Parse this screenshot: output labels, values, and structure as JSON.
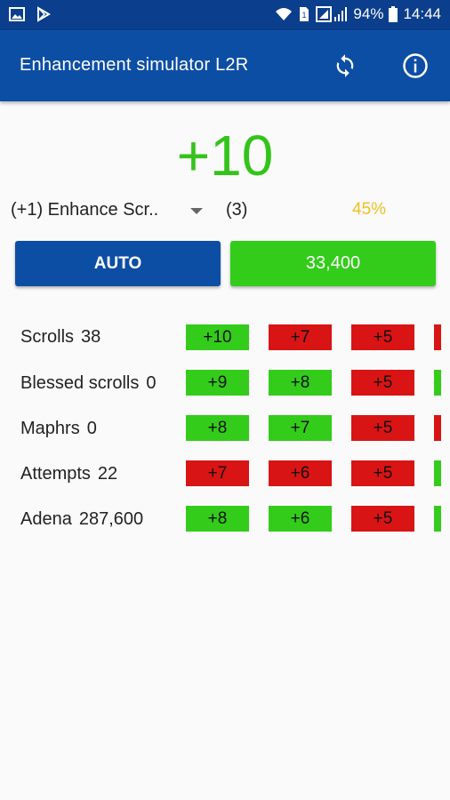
{
  "status": {
    "battery": "94%",
    "time": "14:44"
  },
  "app": {
    "title": "Enhancement simulator L2R"
  },
  "enchant_level": "+10",
  "scroll_select": {
    "value": "(+1) Enhance Scr.."
  },
  "scroll_count": "(3)",
  "success_chance": "45%",
  "buttons": {
    "auto": "AUTO",
    "enhance_cost": "33,400"
  },
  "stats": [
    {
      "label": "Scrolls",
      "value": "38"
    },
    {
      "label": "Blessed scrolls",
      "value": "0"
    },
    {
      "label": "Maphrs",
      "value": "0"
    },
    {
      "label": "Attempts",
      "value": "22"
    },
    {
      "label": "Adena",
      "value": "287,600"
    }
  ],
  "history": [
    [
      {
        "text": "+10",
        "color": "#33cc1a"
      },
      {
        "text": "+7",
        "color": "#d91414"
      },
      {
        "text": "+5",
        "color": "#d91414"
      },
      {
        "text": "",
        "color": "#d91414"
      }
    ],
    [
      {
        "text": "+9",
        "color": "#33cc1a"
      },
      {
        "text": "+8",
        "color": "#33cc1a"
      },
      {
        "text": "+5",
        "color": "#d91414"
      },
      {
        "text": "",
        "color": "#33cc1a"
      }
    ],
    [
      {
        "text": "+8",
        "color": "#33cc1a"
      },
      {
        "text": "+7",
        "color": "#33cc1a"
      },
      {
        "text": "+5",
        "color": "#d91414"
      },
      {
        "text": "",
        "color": "#d91414"
      }
    ],
    [
      {
        "text": "+7",
        "color": "#d91414"
      },
      {
        "text": "+6",
        "color": "#d91414"
      },
      {
        "text": "+5",
        "color": "#d91414"
      },
      {
        "text": "",
        "color": "#33cc1a"
      }
    ],
    [
      {
        "text": "+8",
        "color": "#33cc1a"
      },
      {
        "text": "+6",
        "color": "#33cc1a"
      },
      {
        "text": "+5",
        "color": "#d91414"
      },
      {
        "text": "",
        "color": "#33cc1a"
      }
    ]
  ],
  "icons": {
    "refresh": "refresh-icon",
    "info": "info-icon"
  },
  "colors": {
    "appbar": "#0d4ea5",
    "statusbar": "#0b3e8c",
    "level": "#33c41a",
    "chance": "#f0c020",
    "success": "#33cc1a",
    "fail": "#d91414"
  }
}
